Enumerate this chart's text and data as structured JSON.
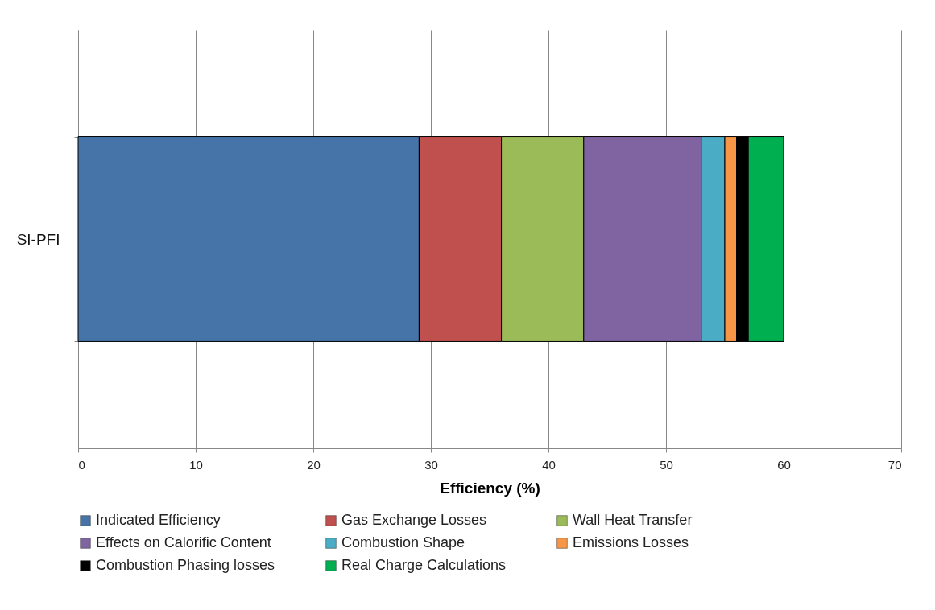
{
  "chart_data": {
    "type": "bar",
    "orientation": "horizontal",
    "stacked": true,
    "xlabel": "Efficiency (%)",
    "categories": [
      "SI-PFI"
    ],
    "series": [
      {
        "name": "Indicated Efficiency",
        "color": "#4674a8",
        "values": [
          29
        ]
      },
      {
        "name": "Gas Exchange Losses",
        "color": "#c0504d",
        "values": [
          7
        ]
      },
      {
        "name": "Wall Heat Transfer",
        "color": "#9bbb59",
        "values": [
          7
        ]
      },
      {
        "name": "Effects on Calorific Content",
        "color": "#8064a2",
        "values": [
          10
        ]
      },
      {
        "name": "Combustion Shape",
        "color": "#4bacc6",
        "values": [
          2
        ]
      },
      {
        "name": "Emissions Losses",
        "color": "#f79646",
        "values": [
          1
        ]
      },
      {
        "name": "Combustion Phasing losses",
        "color": "#000000",
        "values": [
          1
        ]
      },
      {
        "name": "Real Charge Calculations",
        "color": "#00b050",
        "values": [
          3
        ]
      }
    ],
    "xlim": [
      0,
      70
    ],
    "xticks": [
      0,
      10,
      20,
      30,
      40,
      50,
      60,
      70
    ],
    "grid": "x",
    "legend": "bottom"
  }
}
